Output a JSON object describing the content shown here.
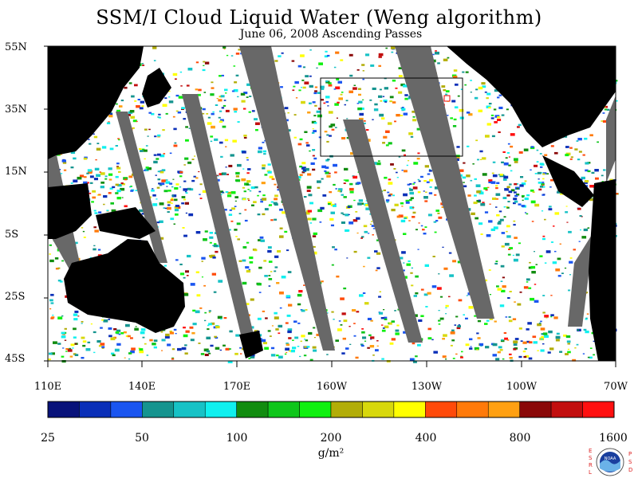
{
  "title": "SSM/I Cloud Liquid Water (Weng algorithm)",
  "subtitle": "June 06, 2008  Ascending Passes",
  "lat_labels": [
    "55N",
    "35N",
    "15N",
    "5S",
    "25S",
    "45S"
  ],
  "lon_labels": [
    "110E",
    "140E",
    "170E",
    "160W",
    "130W",
    "100W",
    "70W"
  ],
  "colorbar": {
    "colors": [
      "#08127a",
      "#0a2fb8",
      "#1a55f0",
      "#15948f",
      "#17c2c6",
      "#10f0ef",
      "#118c0f",
      "#0ec61a",
      "#10f010",
      "#b2ad08",
      "#d8d80c",
      "#ffff00",
      "#ff4a0a",
      "#ff7a0a",
      "#ffa012",
      "#8a0808",
      "#c20e0e",
      "#ff1010"
    ],
    "labels": [
      "25",
      "50",
      "100",
      "200",
      "400",
      "800",
      "1600"
    ]
  },
  "units": "g/m²",
  "logo": {
    "left_letters": "ESRL",
    "right_letters": "PSD",
    "text": "NOAA"
  }
}
